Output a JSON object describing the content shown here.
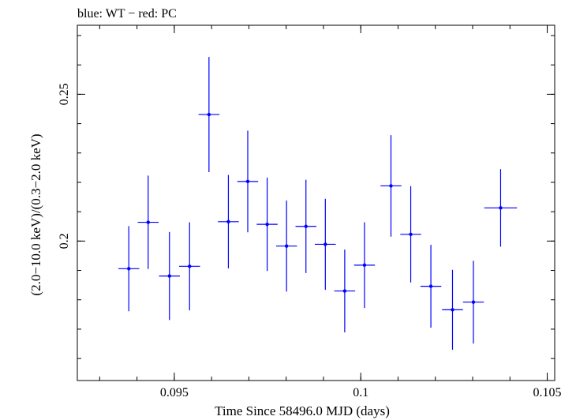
{
  "chart_data": {
    "type": "scatter",
    "title": "blue: WT − red: PC",
    "xlabel": "Time Since 58496.0 MJD (days)",
    "ylabel": "(2.0−10.0 keV)/(0.3−2.0 keV)",
    "xlim": [
      0.0924,
      0.1052
    ],
    "ylim": [
      0.1525,
      0.2735
    ],
    "xticks": [
      {
        "value": 0.095,
        "label": "0.095"
      },
      {
        "value": 0.1,
        "label": "0.1"
      },
      {
        "value": 0.105,
        "label": "0.105"
      }
    ],
    "yticks": [
      {
        "value": 0.2,
        "label": "0.2"
      },
      {
        "value": 0.25,
        "label": "0.25"
      }
    ],
    "grid": false,
    "series": [
      {
        "color": "#0000ff",
        "points": [
          {
            "x": 0.09378,
            "y": 0.1906,
            "xerr": 0.00028,
            "yerr": 0.0145
          },
          {
            "x": 0.0943,
            "y": 0.2064,
            "xerr": 0.00028,
            "yerr": 0.0159
          },
          {
            "x": 0.09487,
            "y": 0.1881,
            "xerr": 0.00028,
            "yerr": 0.015
          },
          {
            "x": 0.09541,
            "y": 0.1914,
            "xerr": 0.00028,
            "yerr": 0.015
          },
          {
            "x": 0.09593,
            "y": 0.2431,
            "xerr": 0.00028,
            "yerr": 0.0196
          },
          {
            "x": 0.09645,
            "y": 0.2066,
            "xerr": 0.00028,
            "yerr": 0.0159
          },
          {
            "x": 0.09697,
            "y": 0.2203,
            "xerr": 0.00028,
            "yerr": 0.0173
          },
          {
            "x": 0.09749,
            "y": 0.2057,
            "xerr": 0.00028,
            "yerr": 0.0159
          },
          {
            "x": 0.09801,
            "y": 0.1983,
            "xerr": 0.00028,
            "yerr": 0.0155
          },
          {
            "x": 0.09853,
            "y": 0.205,
            "xerr": 0.00028,
            "yerr": 0.0159
          },
          {
            "x": 0.09905,
            "y": 0.1989,
            "xerr": 0.00028,
            "yerr": 0.0155
          },
          {
            "x": 0.09957,
            "y": 0.183,
            "xerr": 0.00028,
            "yerr": 0.0141
          },
          {
            "x": 0.1001,
            "y": 0.1918,
            "xerr": 0.00028,
            "yerr": 0.0146
          },
          {
            "x": 0.10081,
            "y": 0.2188,
            "xerr": 0.00028,
            "yerr": 0.0173
          },
          {
            "x": 0.10134,
            "y": 0.2023,
            "xerr": 0.00028,
            "yerr": 0.0164
          },
          {
            "x": 0.10188,
            "y": 0.1846,
            "xerr": 0.00028,
            "yerr": 0.0141
          },
          {
            "x": 0.10246,
            "y": 0.1766,
            "xerr": 0.00028,
            "yerr": 0.0136
          },
          {
            "x": 0.10302,
            "y": 0.1792,
            "xerr": 0.00028,
            "yerr": 0.0141
          },
          {
            "x": 0.10375,
            "y": 0.2113,
            "xerr": 0.00044,
            "yerr": 0.0132
          }
        ]
      }
    ]
  }
}
